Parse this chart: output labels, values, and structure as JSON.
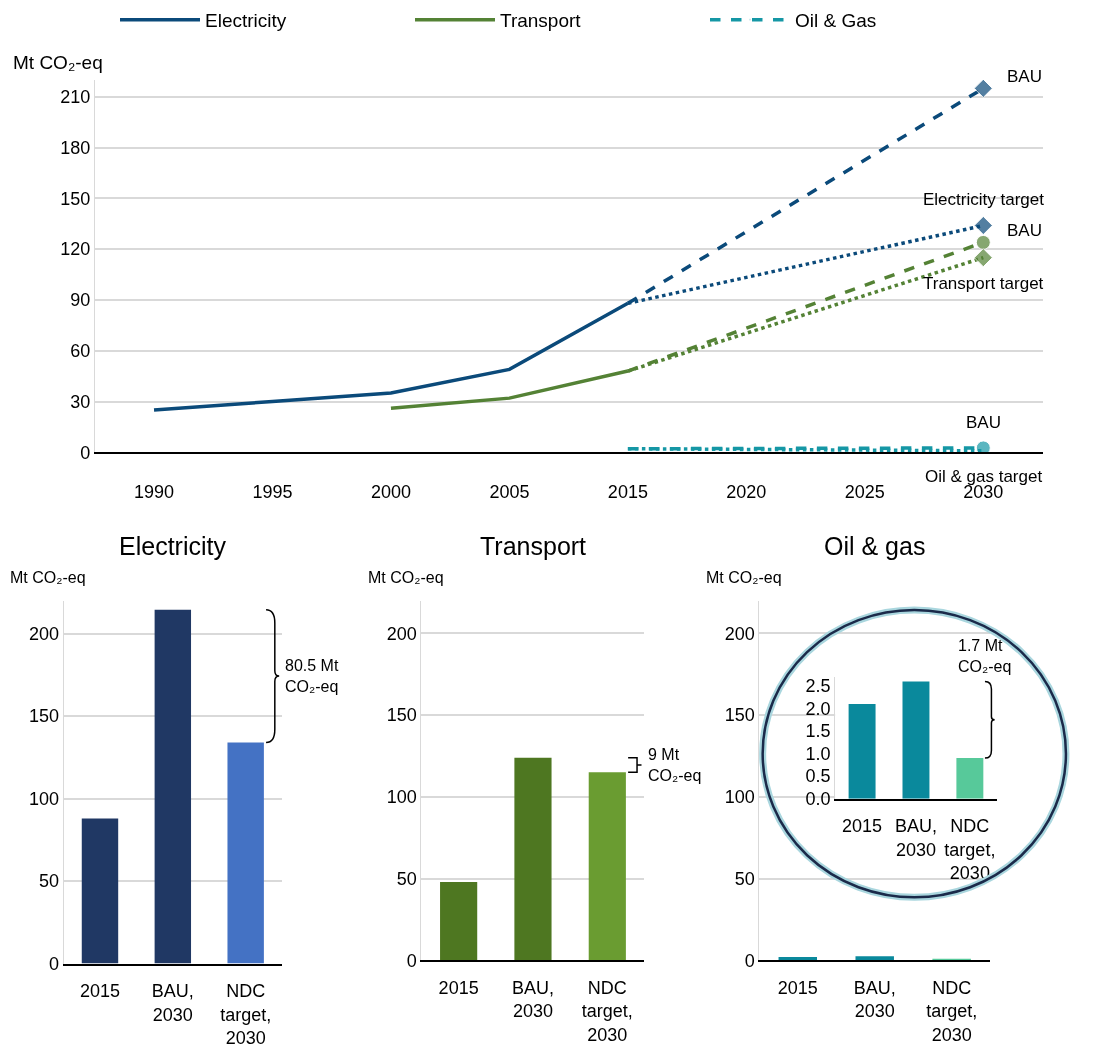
{
  "chart_data": [
    {
      "type": "line",
      "ylabel": "Mt CO₂-eq",
      "categories": [
        "1990",
        "1995",
        "2000",
        "2005",
        "2015",
        "2020",
        "2025",
        "2030"
      ],
      "ylim": [
        0,
        220
      ],
      "yticks": [
        0,
        30,
        60,
        90,
        120,
        150,
        180,
        210
      ],
      "grid": "y",
      "legend": "top",
      "series": [
        {
          "name": "Electricity",
          "color": "#0b4a7a",
          "line_style": "solid",
          "values": [
            25,
            30,
            35,
            49,
            88,
            null,
            null,
            null
          ]
        },
        {
          "name": "Transport",
          "color": "#548235",
          "line_style": "solid",
          "values": [
            null,
            null,
            26,
            32,
            48,
            null,
            null,
            null
          ]
        },
        {
          "name": "Oil & Gas",
          "color": "#1597a5",
          "line_style": "dashed",
          "marker": "circle",
          "values": [
            null,
            null,
            null,
            null,
            2.1,
            null,
            null,
            2.6
          ]
        },
        {
          "color": "#1597a5",
          "line_style": "dotted",
          "values": [
            null,
            null,
            null,
            null,
            2.1,
            null,
            null,
            0.9
          ]
        },
        {
          "color": "#0b4a7a",
          "line_style": "dashed",
          "marker": "diamond",
          "values": [
            null,
            null,
            null,
            null,
            88,
            null,
            null,
            215
          ]
        },
        {
          "color": "#0b4a7a",
          "line_style": "dotted",
          "marker": "diamond",
          "values": [
            null,
            null,
            null,
            null,
            88,
            null,
            null,
            134
          ]
        },
        {
          "color": "#548235",
          "line_style": "dashed",
          "marker": "circle",
          "values": [
            null,
            null,
            null,
            null,
            48,
            null,
            null,
            124
          ]
        },
        {
          "color": "#548235",
          "line_style": "dotted",
          "marker": "diamond",
          "values": [
            null,
            null,
            null,
            null,
            48,
            null,
            null,
            115
          ]
        }
      ],
      "annotations": [
        {
          "text": "BAU",
          "x": "2030",
          "y": 215
        },
        {
          "text": "Electricity target",
          "x": "2030",
          "y": 134
        },
        {
          "text": "BAU",
          "x": "2030",
          "y": 124
        },
        {
          "text": "Transport target",
          "x": "2030",
          "y": 115
        },
        {
          "text": "BAU",
          "x": "2030",
          "y": 2.6
        },
        {
          "text": "Oil & gas target",
          "x": "2030",
          "y": 0.9
        }
      ]
    },
    {
      "type": "bar",
      "title": "Electricity",
      "ylabel": "Mt CO₂-eq",
      "categories": [
        "2015",
        "BAU, 2030",
        "NDC target, 2030"
      ],
      "values": [
        88,
        214.5,
        134
      ],
      "colors": [
        "#203864",
        "#203864",
        "#4472c4"
      ],
      "ylim": [
        0,
        220
      ],
      "yticks": [
        0,
        50,
        100,
        150,
        200
      ],
      "grid": "y",
      "annotations": [
        "80.5 Mt CO₂-eq"
      ]
    },
    {
      "type": "bar",
      "title": "Transport",
      "ylabel": "Mt CO₂-eq",
      "categories": [
        "2015",
        "BAU, 2030",
        "NDC target, 2030"
      ],
      "values": [
        48,
        124,
        115
      ],
      "colors": [
        "#4e7721",
        "#4e7721",
        "#6a9c31"
      ],
      "ylim": [
        0,
        220
      ],
      "yticks": [
        0,
        50,
        100,
        150,
        200
      ],
      "grid": "y",
      "annotations": [
        "9 Mt CO₂-eq"
      ]
    },
    {
      "type": "bar",
      "title": "Oil & gas",
      "ylabel": "Mt CO₂-eq",
      "categories": [
        "2015",
        "BAU, 2030",
        "NDC target, 2030"
      ],
      "values": [
        2.1,
        2.6,
        0.9
      ],
      "colors": [
        "#0a899c",
        "#0a899c",
        "#57c99a"
      ],
      "ylim": [
        0,
        220
      ],
      "yticks": [
        0,
        50,
        100,
        150,
        200
      ],
      "grid": "y"
    },
    {
      "type": "bar",
      "categories": [
        "2015",
        "BAU, 2030",
        "NDC target, 2030"
      ],
      "values": [
        2.1,
        2.6,
        0.9
      ],
      "colors": [
        "#0a899c",
        "#0a899c",
        "#57c99a"
      ],
      "ylim": [
        0,
        2.7
      ],
      "yticks": [
        {
          "value": 0,
          "label": "0.0"
        },
        {
          "value": 0.5,
          "label": "0.5"
        },
        {
          "value": 1,
          "label": "1.0"
        },
        {
          "value": 1.5,
          "label": "1.5"
        },
        {
          "value": 2,
          "label": "2.0"
        },
        {
          "value": 2.5,
          "label": "2.5"
        }
      ],
      "annotations": [
        "1.7 Mt CO₂-eq"
      ]
    }
  ]
}
